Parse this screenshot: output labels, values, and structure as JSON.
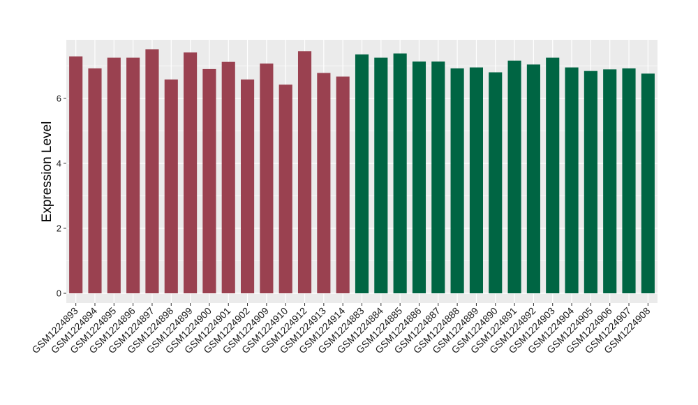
{
  "chart_data": {
    "type": "bar",
    "title": "",
    "xlabel": "",
    "ylabel": "Expression Level",
    "ylim": [
      -0.3,
      7.8
    ],
    "yticks": [
      0,
      2,
      4,
      6
    ],
    "grid": true,
    "legend": "none",
    "categories": [
      "GSM1224893",
      "GSM1224894",
      "GSM1224895",
      "GSM1224896",
      "GSM1224897",
      "GSM1224898",
      "GSM1224899",
      "GSM1224900",
      "GSM1224901",
      "GSM1224902",
      "GSM1224909",
      "GSM1224910",
      "GSM1224912",
      "GSM1224913",
      "GSM1224914",
      "GSM1224883",
      "GSM1224884",
      "GSM1224885",
      "GSM1224886",
      "GSM1224887",
      "GSM1224888",
      "GSM1224889",
      "GSM1224890",
      "GSM1224891",
      "GSM1224892",
      "GSM1224903",
      "GSM1224904",
      "GSM1224905",
      "GSM1224906",
      "GSM1224907",
      "GSM1224908"
    ],
    "values": [
      7.29,
      6.92,
      7.25,
      7.25,
      7.51,
      6.58,
      7.41,
      6.9,
      7.12,
      6.58,
      7.07,
      6.42,
      7.45,
      6.78,
      6.67,
      7.35,
      7.25,
      7.38,
      7.13,
      7.13,
      6.92,
      6.95,
      6.8,
      7.16,
      7.04,
      7.25,
      6.95,
      6.84,
      6.89,
      6.92,
      6.76
    ],
    "groups": [
      "a",
      "a",
      "a",
      "a",
      "a",
      "a",
      "a",
      "a",
      "a",
      "a",
      "a",
      "a",
      "a",
      "a",
      "a",
      "b",
      "b",
      "b",
      "b",
      "b",
      "b",
      "b",
      "b",
      "b",
      "b",
      "b",
      "b",
      "b",
      "b",
      "b",
      "b"
    ],
    "group_colors": {
      "a": "#9a4150",
      "b": "#006543"
    },
    "panel_background": "#ebebeb",
    "grid_color": "#ffffff"
  }
}
